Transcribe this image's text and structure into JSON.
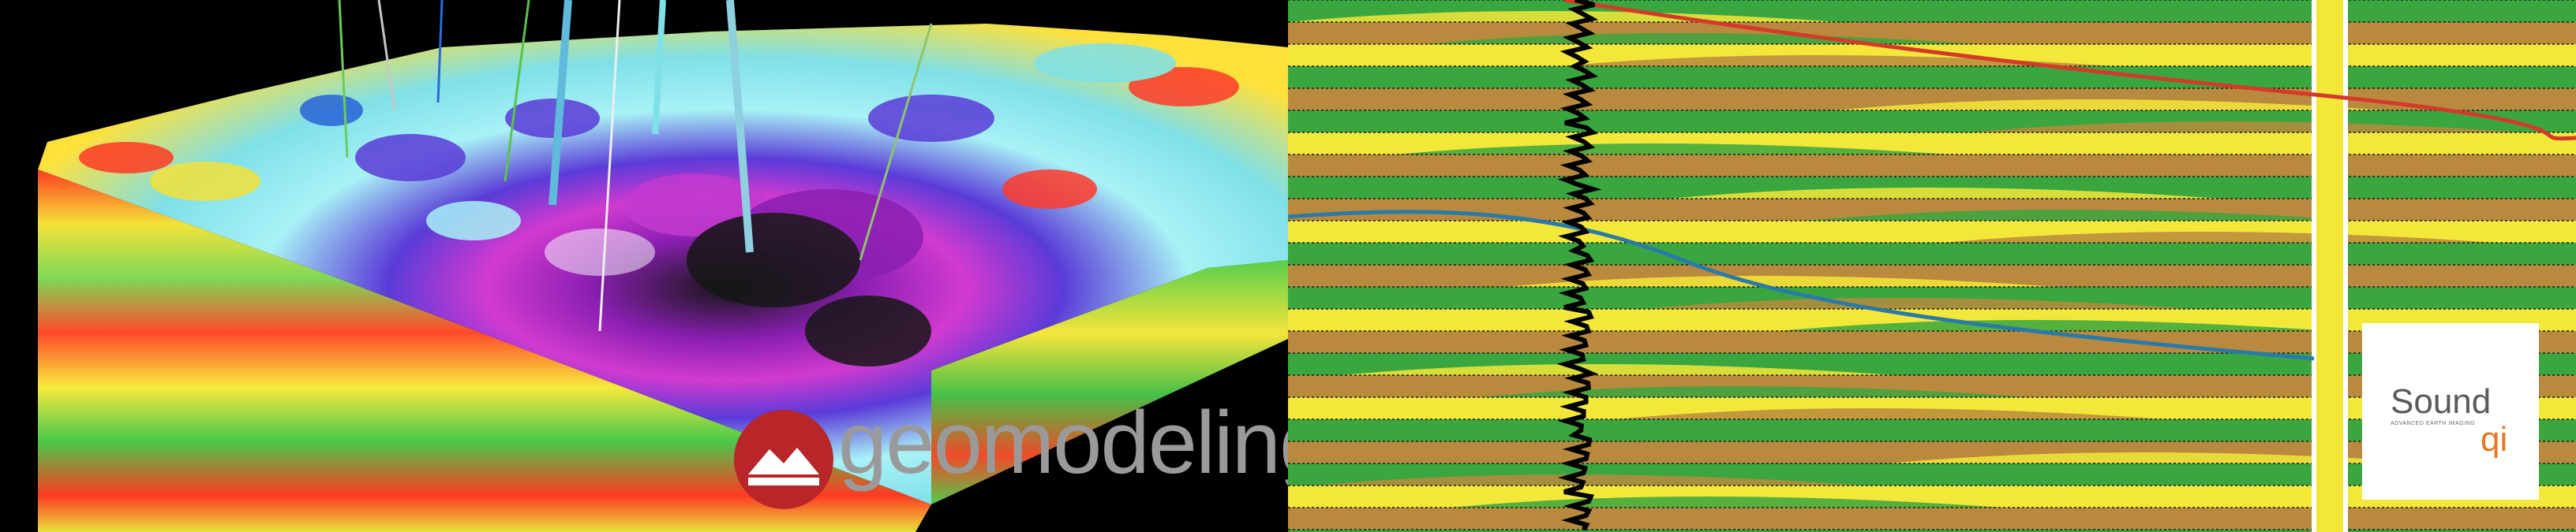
{
  "left": {
    "brand_text": "geomodeling",
    "logo_icon": "mountain-logo-icon",
    "colors": {
      "logo_red": "#b8262a",
      "text_gray": "#9a9a9a"
    }
  },
  "right": {
    "brand_title": "Sound",
    "brand_suffix": "qi",
    "brand_tagline": "ADVANCED EARTH IMAGING",
    "colors": {
      "green": "#3aa63f",
      "yellow": "#f3e83a",
      "tan": "#b9893d",
      "red_curve": "#d43a2a",
      "blue_curve": "#2a7aa8",
      "log": "#000000",
      "accent": "#e87722"
    }
  }
}
